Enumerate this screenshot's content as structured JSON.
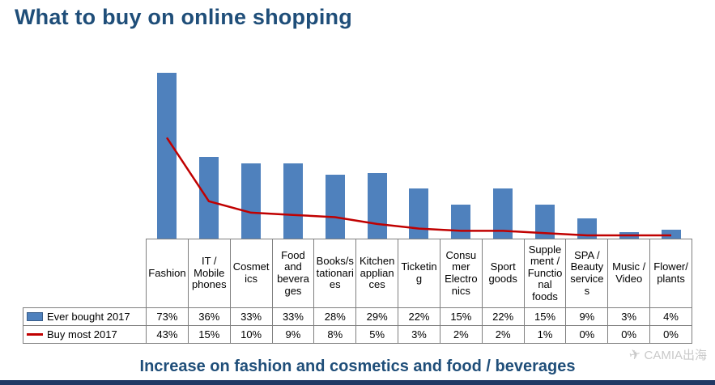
{
  "title": "What to buy on online shopping",
  "caption": "Increase on fashion and cosmetics and food / beverages",
  "watermark": {
    "icon": "paper-plane-icon",
    "text": "CAMIA出海"
  },
  "colors": {
    "title_text": "#1f4e79",
    "bar": "#4f81bd",
    "line": "#c00000",
    "bottom_strip": "#203864"
  },
  "chart_data": {
    "type": "bar",
    "subtype": "bar-and-line-combo",
    "title": "What to buy on online shopping",
    "xlabel": "",
    "ylabel": "",
    "unit": "%",
    "ylim": [
      0,
      80
    ],
    "grid": false,
    "legend_position": "table-rows-left",
    "categories": [
      "Fashion",
      "IT / Mobile phones",
      "Cosmetics",
      "Food and beverages",
      "Books/stationaries",
      "Kitchen appliances",
      "Ticketing",
      "Consumer Electronics",
      "Sport goods",
      "Supplement / Functional foods",
      "SPA / Beauty services",
      "Music / Video",
      "Flower/plants"
    ],
    "series": [
      {
        "name": "Ever bought 2017",
        "type": "bar",
        "color": "#4f81bd",
        "values": [
          73,
          36,
          33,
          33,
          28,
          29,
          22,
          15,
          22,
          15,
          9,
          3,
          4
        ]
      },
      {
        "name": "Buy most 2017",
        "type": "line",
        "color": "#c00000",
        "values": [
          43,
          15,
          10,
          9,
          8,
          5,
          3,
          2,
          2,
          1,
          0,
          0,
          0
        ]
      }
    ]
  },
  "table": {
    "rows": [
      {
        "legend": "Ever bought 2017",
        "swatch": "bar",
        "cells": [
          "73%",
          "36%",
          "33%",
          "33%",
          "28%",
          "29%",
          "22%",
          "15%",
          "22%",
          "15%",
          "9%",
          "3%",
          "4%"
        ]
      },
      {
        "legend": "Buy most 2017",
        "swatch": "line",
        "cells": [
          "43%",
          "15%",
          "10%",
          "9%",
          "8%",
          "5%",
          "3%",
          "2%",
          "2%",
          "1%",
          "0%",
          "0%",
          "0%"
        ]
      }
    ]
  }
}
